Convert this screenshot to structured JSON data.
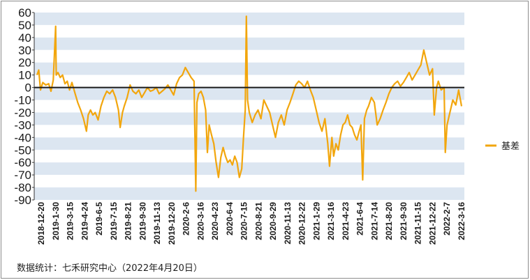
{
  "chart_data": {
    "type": "line",
    "title": "",
    "xlabel": "",
    "ylabel": "",
    "ylim": [
      -90,
      60
    ],
    "yticks": [
      60,
      50,
      40,
      30,
      20,
      10,
      0,
      -10,
      -20,
      -30,
      -40,
      -50,
      -60,
      -70,
      -80,
      -90
    ],
    "grid": "alternating horizontal bands",
    "legend_position": "right",
    "x_tick_labels": [
      "2018-12-20",
      "2019-1-30",
      "2019-3-15",
      "2019-4-24",
      "2019-6-5",
      "2019-7-15",
      "2019-8-21",
      "2019-9-30",
      "2019-11-13",
      "2019-12-20",
      "2020-2-6",
      "2020-3-16",
      "2020-4-23",
      "2020-6-4",
      "2020-7-15",
      "2020-8-21",
      "2020-9-29",
      "2020-11-13",
      "2020-12-22",
      "2021-1-29",
      "2021-3-16",
      "2021-4-23",
      "2021-6-4",
      "2021-7-14",
      "2021-8-20",
      "2021-9-30",
      "2021-11-15",
      "2021-12-22",
      "2022-2-7",
      "2022-3-16"
    ],
    "series": [
      {
        "name": "基差",
        "color": "#f2a60d",
        "points": [
          [
            0,
            10
          ],
          [
            0.3,
            14
          ],
          [
            0.6,
            -2
          ],
          [
            1,
            4
          ],
          [
            1.5,
            2
          ],
          [
            2,
            3
          ],
          [
            2.4,
            -3
          ],
          [
            2.8,
            6
          ],
          [
            3.2,
            49
          ],
          [
            3.3,
            10
          ],
          [
            3.6,
            12
          ],
          [
            4,
            8
          ],
          [
            4.4,
            10
          ],
          [
            4.8,
            3
          ],
          [
            5.2,
            5
          ],
          [
            5.6,
            -2
          ],
          [
            6,
            4
          ],
          [
            6.5,
            -4
          ],
          [
            7,
            -12
          ],
          [
            7.5,
            -18
          ],
          [
            8,
            -25
          ],
          [
            8.5,
            -35
          ],
          [
            8.8,
            -22
          ],
          [
            9.2,
            -18
          ],
          [
            9.6,
            -22
          ],
          [
            10,
            -20
          ],
          [
            10.5,
            -26
          ],
          [
            11,
            -15
          ],
          [
            11.5,
            -8
          ],
          [
            12,
            -3
          ],
          [
            12.5,
            -5
          ],
          [
            13,
            -2
          ],
          [
            13.5,
            -8
          ],
          [
            14,
            -18
          ],
          [
            14.3,
            -32
          ],
          [
            14.7,
            -20
          ],
          [
            15,
            -15
          ],
          [
            15.5,
            -8
          ],
          [
            16,
            2
          ],
          [
            16.5,
            -3
          ],
          [
            17,
            -5
          ],
          [
            17.5,
            -2
          ],
          [
            18,
            -8
          ],
          [
            18.5,
            -4
          ],
          [
            19,
            0
          ],
          [
            19.5,
            -3
          ],
          [
            20,
            -2
          ],
          [
            20.5,
            0
          ],
          [
            21,
            -5
          ],
          [
            21.5,
            -3
          ],
          [
            22,
            -1
          ],
          [
            22.5,
            2
          ],
          [
            23,
            -2
          ],
          [
            23.5,
            -6
          ],
          [
            24,
            3
          ],
          [
            24.5,
            8
          ],
          [
            25,
            10
          ],
          [
            25.5,
            16
          ],
          [
            26,
            12
          ],
          [
            26.5,
            8
          ],
          [
            27,
            5
          ],
          [
            27.3,
            -83
          ],
          [
            27.5,
            -12
          ],
          [
            27.8,
            -5
          ],
          [
            28.2,
            -3
          ],
          [
            28.6,
            -8
          ],
          [
            29,
            -18
          ],
          [
            29.3,
            -52
          ],
          [
            29.6,
            -30
          ],
          [
            30,
            -38
          ],
          [
            30.4,
            -45
          ],
          [
            30.8,
            -60
          ],
          [
            31.2,
            -72
          ],
          [
            31.6,
            -56
          ],
          [
            32,
            -48
          ],
          [
            32.4,
            -55
          ],
          [
            32.8,
            -60
          ],
          [
            33.2,
            -58
          ],
          [
            33.6,
            -62
          ],
          [
            34,
            -55
          ],
          [
            34.4,
            -60
          ],
          [
            34.8,
            -72
          ],
          [
            35.2,
            -65
          ],
          [
            35.5,
            -40
          ],
          [
            35.8,
            -18
          ],
          [
            36,
            57
          ],
          [
            36.2,
            -10
          ],
          [
            36.5,
            -20
          ],
          [
            37,
            -28
          ],
          [
            37.5,
            -22
          ],
          [
            38,
            -18
          ],
          [
            38.5,
            -25
          ],
          [
            39,
            -10
          ],
          [
            39.5,
            -15
          ],
          [
            40,
            -20
          ],
          [
            40.5,
            -30
          ],
          [
            41,
            -40
          ],
          [
            41.5,
            -28
          ],
          [
            42,
            -22
          ],
          [
            42.5,
            -30
          ],
          [
            43,
            -18
          ],
          [
            43.5,
            -12
          ],
          [
            44,
            -5
          ],
          [
            44.5,
            2
          ],
          [
            45,
            5
          ],
          [
            45.5,
            3
          ],
          [
            46,
            0
          ],
          [
            46.5,
            5
          ],
          [
            47,
            -2
          ],
          [
            47.5,
            -8
          ],
          [
            48,
            -18
          ],
          [
            48.5,
            -28
          ],
          [
            49,
            -35
          ],
          [
            49.5,
            -25
          ],
          [
            50,
            -45
          ],
          [
            50.3,
            -63
          ],
          [
            50.7,
            -40
          ],
          [
            51,
            -55
          ],
          [
            51.4,
            -45
          ],
          [
            51.8,
            -50
          ],
          [
            52.2,
            -38
          ],
          [
            52.6,
            -30
          ],
          [
            53,
            -28
          ],
          [
            53.4,
            -22
          ],
          [
            53.8,
            -30
          ],
          [
            54.2,
            -32
          ],
          [
            54.6,
            -38
          ],
          [
            55,
            -42
          ],
          [
            55.4,
            -35
          ],
          [
            55.7,
            -30
          ],
          [
            56,
            -74
          ],
          [
            56.3,
            -25
          ],
          [
            56.7,
            -18
          ],
          [
            57,
            -15
          ],
          [
            57.5,
            -8
          ],
          [
            58,
            -12
          ],
          [
            58.5,
            -30
          ],
          [
            59,
            -25
          ],
          [
            59.5,
            -18
          ],
          [
            60,
            -12
          ],
          [
            60.5,
            -5
          ],
          [
            61,
            0
          ],
          [
            61.5,
            3
          ],
          [
            62,
            5
          ],
          [
            62.5,
            1
          ],
          [
            63,
            4
          ],
          [
            63.5,
            8
          ],
          [
            64,
            12
          ],
          [
            64.5,
            6
          ],
          [
            65,
            10
          ],
          [
            65.5,
            14
          ],
          [
            66,
            18
          ],
          [
            66.5,
            30
          ],
          [
            67,
            20
          ],
          [
            67.5,
            10
          ],
          [
            68,
            15
          ],
          [
            68.3,
            -22
          ],
          [
            68.7,
            0
          ],
          [
            69,
            5
          ],
          [
            69.5,
            -2
          ],
          [
            70,
            0
          ],
          [
            70.2,
            -52
          ],
          [
            70.5,
            -30
          ],
          [
            71,
            -20
          ],
          [
            71.5,
            -10
          ],
          [
            72,
            -14
          ],
          [
            72.5,
            -2
          ],
          [
            73,
            -15
          ]
        ]
      }
    ]
  },
  "source_note": "数据统计：七禾研究中心（2022年4月20日）"
}
